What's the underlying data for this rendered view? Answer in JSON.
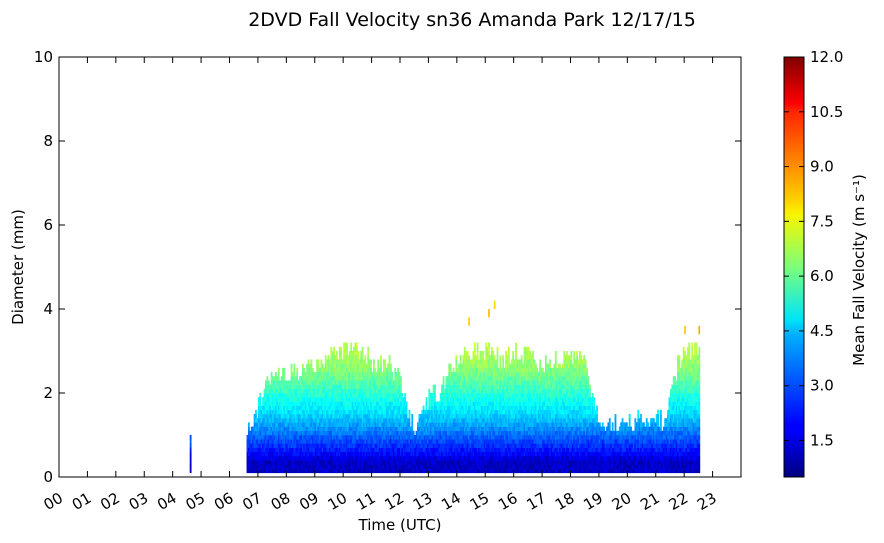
{
  "chart_data": {
    "type": "heatmap",
    "title": "2DVD Fall Velocity sn36 Amanda Park 12/17/15",
    "xlabel": "Time (UTC)",
    "ylabel": "Diameter (mm)",
    "xlim": [
      0,
      24
    ],
    "ylim": [
      0,
      10
    ],
    "x_tick_labels": [
      "00",
      "01",
      "02",
      "03",
      "04",
      "05",
      "06",
      "07",
      "08",
      "09",
      "10",
      "11",
      "12",
      "13",
      "14",
      "15",
      "16",
      "17",
      "18",
      "19",
      "20",
      "21",
      "22",
      "23"
    ],
    "y_tick_labels": [
      "0",
      "2",
      "4",
      "6",
      "8",
      "10"
    ],
    "colorbar": {
      "label": "Mean Fall Velocity (m s⁻¹)",
      "range": [
        0.5,
        12.0
      ],
      "tick_labels": [
        "1.5",
        "3.0",
        "4.5",
        "6.0",
        "7.5",
        "9.0",
        "10.5",
        "12.0"
      ],
      "colormap": "jet"
    },
    "grid": false,
    "echo_profile": {
      "description_units": "hour (UTC) vs max diameter (mm) of echo column",
      "hours": [
        4.6,
        6.6,
        6.9,
        7.4,
        8.0,
        8.5,
        9.0,
        9.5,
        10.0,
        10.5,
        11.0,
        11.5,
        12.0,
        12.3,
        12.6,
        13.0,
        13.4,
        13.8,
        14.3,
        14.8,
        15.2,
        15.6,
        16.0,
        16.4,
        16.8,
        17.2,
        17.6,
        18.0,
        18.4,
        18.9,
        19.3,
        19.7,
        20.1,
        20.5,
        20.9,
        21.3,
        21.7,
        22.0,
        22.3,
        22.55
      ],
      "max_diameter": [
        0.9,
        0.9,
        1.5,
        2.3,
        2.4,
        2.5,
        2.6,
        2.9,
        3.0,
        3.0,
        2.7,
        2.7,
        2.2,
        1.3,
        1.1,
        1.9,
        2.0,
        2.6,
        2.9,
        3.0,
        2.9,
        2.7,
        2.9,
        2.8,
        2.7,
        2.6,
        2.8,
        2.9,
        2.9,
        1.5,
        1.2,
        1.2,
        1.3,
        1.3,
        1.4,
        1.3,
        2.5,
        3.0,
        3.0,
        3.0
      ]
    },
    "velocity_profile": {
      "description_units": "diameter (mm) vs mean fall velocity (m/s)",
      "diameter": [
        0.3,
        0.6,
        0.9,
        1.2,
        1.5,
        1.8,
        2.1,
        2.5,
        3.0,
        3.5,
        4.0
      ],
      "velocity": [
        1.3,
        2.2,
        3.0,
        3.8,
        4.5,
        5.0,
        5.6,
        6.3,
        6.9,
        7.5,
        8.3
      ]
    },
    "outliers": [
      {
        "x": 15.1,
        "y": 3.8,
        "v": 8.4
      },
      {
        "x": 15.3,
        "y": 4.0,
        "v": 8.1
      },
      {
        "x": 14.4,
        "y": 3.6,
        "v": 8.2
      },
      {
        "x": 22.0,
        "y": 3.4,
        "v": 8.3
      },
      {
        "x": 22.5,
        "y": 3.4,
        "v": 8.6
      },
      {
        "x": 19.9,
        "y": 0.2,
        "v": 1.0
      },
      {
        "x": 20.7,
        "y": 0.2,
        "v": 1.0
      },
      {
        "x": 21.6,
        "y": 0.2,
        "v": 1.0
      }
    ]
  }
}
